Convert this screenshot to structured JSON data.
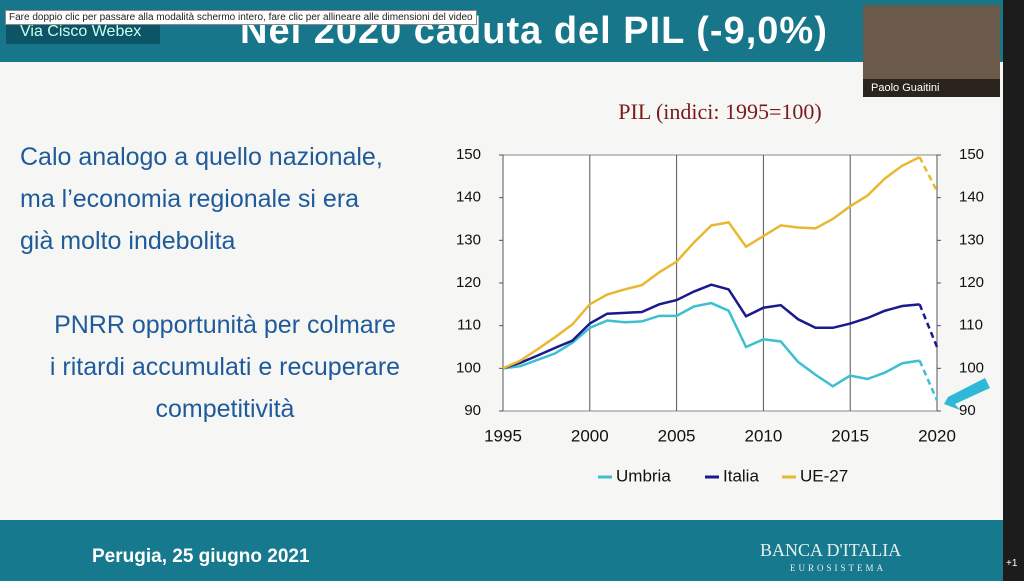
{
  "tooltip": "Fare doppio clic per passare alla modalità schermo intero, fare clic per allineare alle dimensioni del video",
  "app_label": "Via Cisco Webex",
  "participant": "Paolo Guaitini",
  "slide": {
    "title": "Nel 2020 caduta del PIL (-9,0%)",
    "text1": [
      "Calo analogo a quello nazionale,",
      "ma l’economia regionale si era",
      "già molto indebolita"
    ],
    "text2": [
      "PNRR opportunità per colmare",
      "i ritardi accumulati e recuperare",
      "competitività"
    ],
    "footer": "Perugia, 25 giugno 2021",
    "logo": "BANCA D'ITALIA",
    "logo_sub": "EUROSISTEMA"
  },
  "badge": "+1",
  "chart_data": {
    "type": "line",
    "title": "PIL (indici: 1995=100)",
    "x": [
      1995,
      1996,
      1997,
      1998,
      1999,
      2000,
      2001,
      2002,
      2003,
      2004,
      2005,
      2006,
      2007,
      2008,
      2009,
      2010,
      2011,
      2012,
      2013,
      2014,
      2015,
      2016,
      2017,
      2018,
      2019,
      2020
    ],
    "xlim": [
      1995,
      2020
    ],
    "xticks": [
      1995,
      2000,
      2005,
      2010,
      2015,
      2020
    ],
    "ylim": [
      90,
      150
    ],
    "yticks": [
      90,
      100,
      110,
      120,
      130,
      140,
      150
    ],
    "y2lim": [
      90,
      150
    ],
    "y2ticks": [
      90,
      100,
      110,
      120,
      130,
      140,
      150
    ],
    "grid": true,
    "series": [
      {
        "name": "Umbria",
        "color": "#3cc0d0",
        "values": [
          100,
          100.5,
          102,
          103.5,
          106,
          109.5,
          111.2,
          110.8,
          111,
          112.3,
          112.3,
          114.5,
          115.3,
          113.5,
          105,
          106.8,
          106.3,
          101.5,
          98.5,
          95.8,
          98.3,
          97.5,
          99,
          101.2,
          101.8,
          92.5
        ]
      },
      {
        "name": "Italia",
        "color": "#1a1a8c",
        "values": [
          100,
          101.3,
          103,
          104.8,
          106.5,
          110.5,
          112.8,
          113,
          113.2,
          115,
          116,
          118,
          119.6,
          118.5,
          112.2,
          114.2,
          114.8,
          111.5,
          109.5,
          109.5,
          110.5,
          111.8,
          113.5,
          114.6,
          115,
          105
        ]
      },
      {
        "name": "UE-27",
        "color": "#e8b830",
        "values": [
          100,
          101.8,
          104.5,
          107.3,
          110.3,
          115,
          117.3,
          118.5,
          119.5,
          122.5,
          125,
          129.5,
          133.5,
          134.2,
          128.5,
          131,
          133.5,
          133,
          132.8,
          135,
          138,
          140.5,
          144.5,
          147.5,
          149.5,
          141.5
        ]
      }
    ]
  }
}
